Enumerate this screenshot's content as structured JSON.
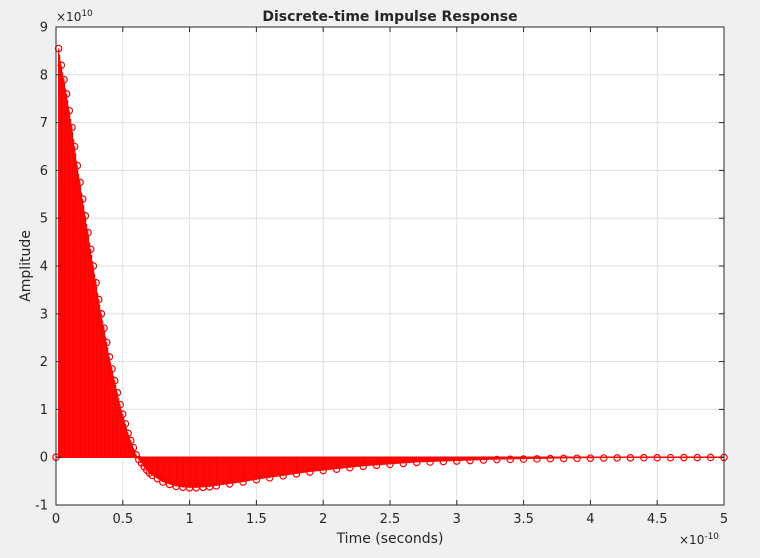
{
  "chart_data": {
    "type": "scatter",
    "title": "Discrete-time Impulse Response",
    "xlabel": "Time (seconds)",
    "ylabel": "Amplitude",
    "x_exponent_label": "×10",
    "x_exponent": "-10",
    "y_exponent_label": "×10",
    "y_exponent": "10",
    "xlim": [
      0,
      5
    ],
    "ylim": [
      -1,
      9
    ],
    "x_ticks": [
      "0",
      "0.5",
      "1",
      "1.5",
      "2",
      "2.5",
      "3",
      "3.5",
      "4",
      "4.5",
      "5"
    ],
    "y_ticks": [
      "-1",
      "0",
      "1",
      "2",
      "3",
      "4",
      "5",
      "6",
      "7",
      "8",
      "9"
    ],
    "grid": true,
    "marker": "circle",
    "stem": true,
    "color": "#ff0000",
    "series": [
      {
        "x": [
          0.0,
          0.02,
          0.04,
          0.06,
          0.08,
          0.1,
          0.12,
          0.14,
          0.16,
          0.18,
          0.2,
          0.22,
          0.24,
          0.26,
          0.28,
          0.3,
          0.32,
          0.34,
          0.36,
          0.38,
          0.4,
          0.42,
          0.44,
          0.46,
          0.48,
          0.5,
          0.52,
          0.54,
          0.56,
          0.58,
          0.6,
          0.62,
          0.64,
          0.66,
          0.68,
          0.7,
          0.72,
          0.76,
          0.8,
          0.85,
          0.9,
          0.95,
          1.0,
          1.05,
          1.1,
          1.15,
          1.2,
          1.3,
          1.4,
          1.5,
          1.6,
          1.7,
          1.8,
          1.9,
          2.0,
          2.1,
          2.2,
          2.3,
          2.4,
          2.5,
          2.6,
          2.7,
          2.8,
          2.9,
          3.0,
          3.1,
          3.2,
          3.3,
          3.4,
          3.5,
          3.6,
          3.7,
          3.8,
          3.9,
          4.0,
          4.1,
          4.2,
          4.3,
          4.4,
          4.5,
          4.6,
          4.7,
          4.8,
          4.9,
          5.0
        ],
        "y": [
          0.0,
          8.55,
          8.2,
          7.9,
          7.6,
          7.25,
          6.9,
          6.5,
          6.1,
          5.75,
          5.4,
          5.05,
          4.7,
          4.35,
          4.0,
          3.65,
          3.3,
          3.0,
          2.7,
          2.4,
          2.1,
          1.85,
          1.6,
          1.35,
          1.1,
          0.9,
          0.7,
          0.5,
          0.35,
          0.2,
          0.05,
          -0.05,
          -0.12,
          -0.2,
          -0.27,
          -0.33,
          -0.38,
          -0.45,
          -0.52,
          -0.57,
          -0.61,
          -0.63,
          -0.64,
          -0.64,
          -0.63,
          -0.62,
          -0.6,
          -0.56,
          -0.52,
          -0.47,
          -0.43,
          -0.39,
          -0.35,
          -0.31,
          -0.28,
          -0.25,
          -0.22,
          -0.19,
          -0.17,
          -0.15,
          -0.13,
          -0.11,
          -0.1,
          -0.09,
          -0.08,
          -0.07,
          -0.06,
          -0.05,
          -0.045,
          -0.04,
          -0.035,
          -0.03,
          -0.025,
          -0.022,
          -0.02,
          -0.017,
          -0.015,
          -0.013,
          -0.011,
          -0.01,
          -0.009,
          -0.008,
          -0.007,
          -0.006,
          -0.005
        ]
      }
    ]
  }
}
